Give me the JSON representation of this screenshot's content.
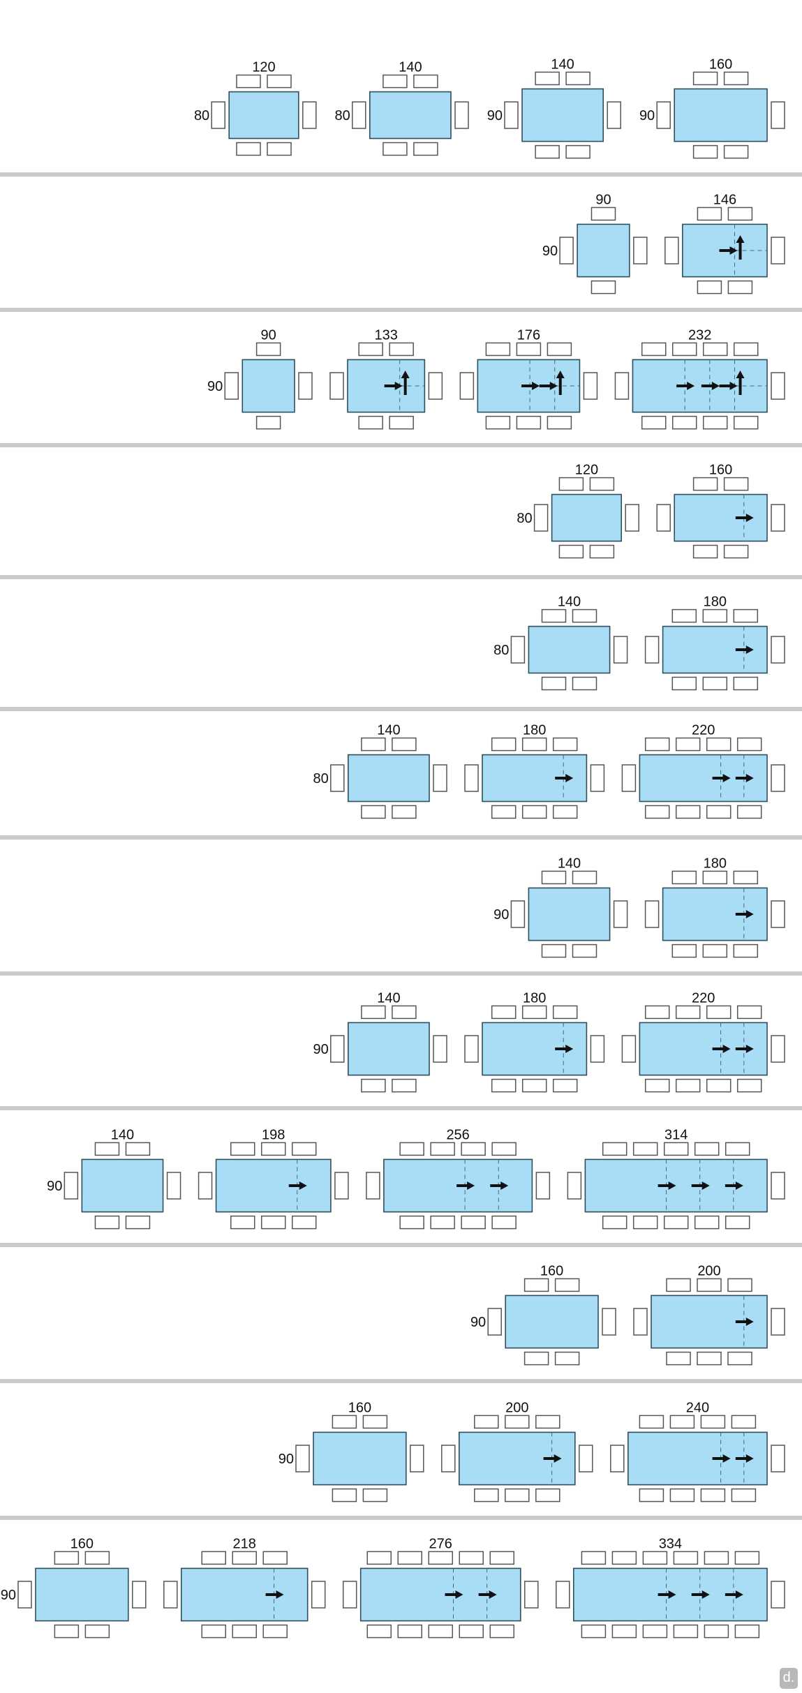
{
  "colors": {
    "table_fill": "#a9ddf6",
    "table_stroke": "#2f4f5f",
    "chair_stroke": "#555555",
    "separator": "#cacaca",
    "arrow": "#111111"
  },
  "logo_text": "d.",
  "rows": [
    {
      "tables": [
        {
          "width": 120,
          "depth": 80,
          "depth_label": "80",
          "top": 2,
          "bottom": 2,
          "ext": [],
          "swivel": false
        },
        {
          "width": 140,
          "depth": 80,
          "depth_label": "80",
          "top": 2,
          "bottom": 2,
          "ext": [],
          "swivel": false
        },
        {
          "width": 140,
          "depth": 90,
          "depth_label": "90",
          "top": 2,
          "bottom": 2,
          "ext": [],
          "swivel": false
        },
        {
          "width": 160,
          "depth": 90,
          "depth_label": "90",
          "top": 2,
          "bottom": 2,
          "ext": [],
          "swivel": false
        }
      ]
    },
    {
      "tables": [
        {
          "width": 90,
          "depth": 90,
          "depth_label": "90",
          "top": 1,
          "bottom": 1,
          "ext": [],
          "swivel": false
        },
        {
          "width": 146,
          "depth": 90,
          "top": 2,
          "bottom": 2,
          "ext": [
            90
          ],
          "swivel": true
        }
      ]
    },
    {
      "tables": [
        {
          "width": 90,
          "depth": 90,
          "depth_label": "90",
          "top": 1,
          "bottom": 1,
          "ext": [],
          "swivel": false
        },
        {
          "width": 133,
          "depth": 90,
          "top": 2,
          "bottom": 2,
          "ext": [
            90
          ],
          "swivel": true
        },
        {
          "width": 176,
          "depth": 90,
          "top": 3,
          "bottom": 3,
          "ext": [
            90,
            133
          ],
          "swivel": true
        },
        {
          "width": 232,
          "depth": 90,
          "top": 4,
          "bottom": 4,
          "ext": [
            90,
            133,
            176
          ],
          "swivel": true
        }
      ]
    },
    {
      "tables": [
        {
          "width": 120,
          "depth": 80,
          "depth_label": "80",
          "top": 2,
          "bottom": 2,
          "ext": [],
          "swivel": false
        },
        {
          "width": 160,
          "depth": 80,
          "top": 2,
          "bottom": 2,
          "ext": [
            120
          ],
          "swivel": false
        }
      ]
    },
    {
      "tables": [
        {
          "width": 140,
          "depth": 80,
          "depth_label": "80",
          "top": 2,
          "bottom": 2,
          "ext": [],
          "swivel": false
        },
        {
          "width": 180,
          "depth": 80,
          "top": 3,
          "bottom": 3,
          "ext": [
            140
          ],
          "swivel": false
        }
      ]
    },
    {
      "tables": [
        {
          "width": 140,
          "depth": 80,
          "depth_label": "80",
          "top": 2,
          "bottom": 2,
          "ext": [],
          "swivel": false
        },
        {
          "width": 180,
          "depth": 80,
          "top": 3,
          "bottom": 3,
          "ext": [
            140
          ],
          "swivel": false
        },
        {
          "width": 220,
          "depth": 80,
          "top": 4,
          "bottom": 4,
          "ext": [
            140,
            180
          ],
          "swivel": false
        }
      ]
    },
    {
      "tables": [
        {
          "width": 140,
          "depth": 90,
          "depth_label": "90",
          "top": 2,
          "bottom": 2,
          "ext": [],
          "swivel": false
        },
        {
          "width": 180,
          "depth": 90,
          "top": 3,
          "bottom": 3,
          "ext": [
            140
          ],
          "swivel": false
        }
      ]
    },
    {
      "tables": [
        {
          "width": 140,
          "depth": 90,
          "depth_label": "90",
          "top": 2,
          "bottom": 2,
          "ext": [],
          "swivel": false
        },
        {
          "width": 180,
          "depth": 90,
          "top": 3,
          "bottom": 3,
          "ext": [
            140
          ],
          "swivel": false
        },
        {
          "width": 220,
          "depth": 90,
          "top": 4,
          "bottom": 4,
          "ext": [
            140,
            180
          ],
          "swivel": false
        }
      ]
    },
    {
      "tables": [
        {
          "width": 140,
          "depth": 90,
          "depth_label": "90",
          "top": 2,
          "bottom": 2,
          "ext": [],
          "swivel": false
        },
        {
          "width": 198,
          "depth": 90,
          "top": 3,
          "bottom": 3,
          "ext": [
            140
          ],
          "swivel": false
        },
        {
          "width": 256,
          "depth": 90,
          "top": 4,
          "bottom": 4,
          "ext": [
            140,
            198
          ],
          "swivel": false
        },
        {
          "width": 314,
          "depth": 90,
          "top": 5,
          "bottom": 5,
          "ext": [
            140,
            198,
            256
          ],
          "swivel": false
        }
      ]
    },
    {
      "tables": [
        {
          "width": 160,
          "depth": 90,
          "depth_label": "90",
          "top": 2,
          "bottom": 2,
          "ext": [],
          "swivel": false
        },
        {
          "width": 200,
          "depth": 90,
          "top": 3,
          "bottom": 3,
          "ext": [
            160
          ],
          "swivel": false
        }
      ]
    },
    {
      "tables": [
        {
          "width": 160,
          "depth": 90,
          "depth_label": "90",
          "top": 2,
          "bottom": 2,
          "ext": [],
          "swivel": false
        },
        {
          "width": 200,
          "depth": 90,
          "top": 3,
          "bottom": 3,
          "ext": [
            160
          ],
          "swivel": false
        },
        {
          "width": 240,
          "depth": 90,
          "top": 4,
          "bottom": 4,
          "ext": [
            160,
            200
          ],
          "swivel": false
        }
      ]
    },
    {
      "tables": [
        {
          "width": 160,
          "depth": 90,
          "depth_label": "90",
          "top": 2,
          "bottom": 2,
          "ext": [],
          "swivel": false
        },
        {
          "width": 218,
          "depth": 90,
          "top": 3,
          "bottom": 3,
          "ext": [
            160
          ],
          "swivel": false
        },
        {
          "width": 276,
          "depth": 90,
          "top": 5,
          "bottom": 5,
          "ext": [
            160,
            218
          ],
          "swivel": false
        },
        {
          "width": 334,
          "depth": 90,
          "top": 6,
          "bottom": 6,
          "ext": [
            160,
            218,
            276
          ],
          "swivel": false
        }
      ]
    }
  ]
}
